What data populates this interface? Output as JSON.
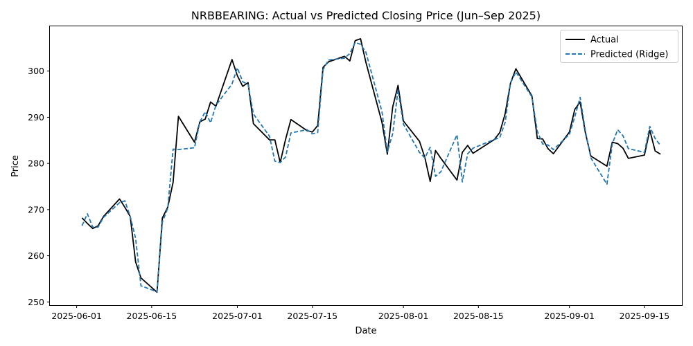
{
  "chart_data": {
    "type": "line",
    "title": "NRBBEARING: Actual vs Predicted Closing Price (Jun–Sep 2025)",
    "xlabel": "Date",
    "ylabel": "Price",
    "xlim": [
      "2025-05-27",
      "2025-09-22"
    ],
    "ylim": [
      249.3,
      309.7
    ],
    "x_ticks": [
      "2025-06-01",
      "2025-06-15",
      "2025-07-01",
      "2025-07-15",
      "2025-08-01",
      "2025-08-15",
      "2025-09-01",
      "2025-09-15"
    ],
    "y_ticks": [
      250,
      260,
      270,
      280,
      290,
      300
    ],
    "legend": "top-right",
    "grid": false,
    "colors": {
      "actual": "#000000",
      "predicted": "#1f77b4"
    },
    "x": [
      "2025-06-02",
      "2025-06-03",
      "2025-06-04",
      "2025-06-05",
      "2025-06-06",
      "2025-06-09",
      "2025-06-10",
      "2025-06-11",
      "2025-06-12",
      "2025-06-13",
      "2025-06-16",
      "2025-06-17",
      "2025-06-18",
      "2025-06-19",
      "2025-06-20",
      "2025-06-23",
      "2025-06-24",
      "2025-06-25",
      "2025-06-26",
      "2025-06-27",
      "2025-06-30",
      "2025-07-01",
      "2025-07-02",
      "2025-07-03",
      "2025-07-04",
      "2025-07-07",
      "2025-07-08",
      "2025-07-09",
      "2025-07-10",
      "2025-07-11",
      "2025-07-14",
      "2025-07-15",
      "2025-07-16",
      "2025-07-17",
      "2025-07-18",
      "2025-07-21",
      "2025-07-22",
      "2025-07-23",
      "2025-07-24",
      "2025-07-25",
      "2025-07-28",
      "2025-07-29",
      "2025-07-30",
      "2025-07-31",
      "2025-08-01",
      "2025-08-04",
      "2025-08-05",
      "2025-08-06",
      "2025-08-07",
      "2025-08-08",
      "2025-08-11",
      "2025-08-12",
      "2025-08-13",
      "2025-08-14",
      "2025-08-18",
      "2025-08-19",
      "2025-08-20",
      "2025-08-21",
      "2025-08-22",
      "2025-08-25",
      "2025-08-26",
      "2025-08-27",
      "2025-08-28",
      "2025-08-29",
      "2025-09-01",
      "2025-09-02",
      "2025-09-03",
      "2025-09-04",
      "2025-09-05",
      "2025-09-08",
      "2025-09-09",
      "2025-09-10",
      "2025-09-11",
      "2025-09-12",
      "2025-09-15",
      "2025-09-16",
      "2025-09-17",
      "2025-09-18"
    ],
    "series": [
      {
        "name": "Actual",
        "values": [
          268.2,
          267.0,
          265.9,
          266.5,
          268.5,
          272.3,
          270.5,
          268.5,
          258.7,
          255.2,
          252.1,
          268.2,
          270.5,
          275.9,
          290.2,
          284.6,
          289.0,
          289.6,
          293.3,
          292.4,
          302.5,
          299.0,
          296.7,
          297.5,
          288.6,
          285.1,
          285.1,
          280.2,
          285.2,
          289.5,
          287.1,
          286.8,
          288.2,
          300.8,
          302.0,
          303.2,
          302.2,
          306.6,
          307.0,
          301.9,
          288.9,
          282.0,
          292.2,
          296.9,
          289.2,
          284.8,
          281.3,
          276.1,
          282.8,
          281.1,
          276.4,
          282.4,
          283.9,
          282.2,
          285.2,
          286.7,
          290.8,
          297.4,
          300.5,
          294.6,
          285.4,
          285.3,
          283.2,
          282.1,
          286.8,
          291.7,
          293.3,
          286.5,
          281.6,
          279.4,
          284.6,
          284.3,
          283.3,
          281.1,
          281.8,
          287.2,
          282.7,
          282.0
        ]
      },
      {
        "name": "Predicted (Ridge)",
        "values": [
          266.5,
          269.1,
          266.2,
          266.2,
          268.3,
          271.5,
          271.9,
          268.5,
          263.8,
          253.5,
          252.2,
          267.3,
          270.3,
          283.1,
          283.0,
          283.4,
          289.0,
          291.2,
          288.8,
          292.6,
          297.2,
          300.7,
          297.7,
          297.1,
          290.7,
          285.9,
          280.5,
          280.2,
          281.4,
          286.6,
          287.3,
          286.4,
          286.7,
          300.3,
          302.4,
          302.8,
          303.8,
          306.2,
          305.8,
          304.1,
          291.2,
          282.5,
          286.4,
          295.9,
          288.5,
          282.4,
          281.2,
          283.5,
          277.2,
          278.2,
          286.2,
          276.0,
          282.1,
          283.3,
          285.2,
          285.6,
          288.9,
          297.4,
          299.8,
          294.4,
          287.0,
          284.2,
          284.0,
          283.0,
          286.3,
          290.1,
          294.3,
          286.9,
          281.2,
          275.5,
          284.2,
          287.3,
          286.0,
          283.2,
          282.4,
          288.0,
          285.4,
          283.9
        ]
      }
    ]
  }
}
